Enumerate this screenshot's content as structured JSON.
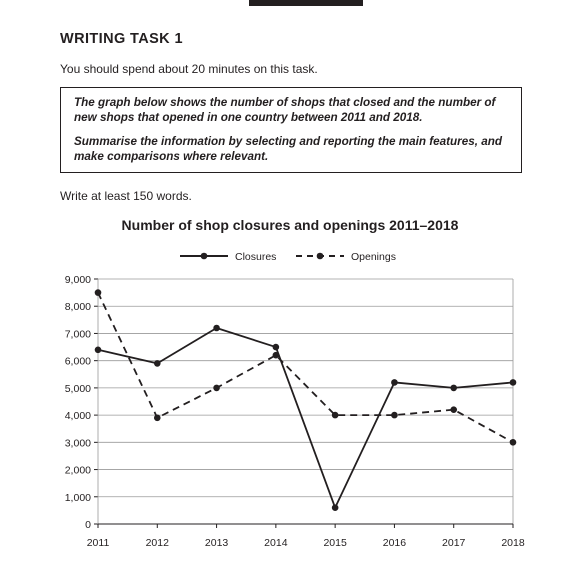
{
  "page": {
    "heading": "WRITING TASK 1",
    "instruction": "You should spend about 20 minutes on this task.",
    "task_paragraph_1": "The graph below shows the number of shops that closed and the number of new shops that opened in one country between 2011 and 2018.",
    "task_paragraph_2": "Summarise the information by selecting and reporting the main features, and make comparisons where relevant.",
    "word_count": "Write at least 150 words."
  },
  "chart_data": {
    "type": "line",
    "title": "Number of shop closures and openings 2011–2018",
    "x": [
      "2011",
      "2012",
      "2013",
      "2014",
      "2015",
      "2016",
      "2017",
      "2018"
    ],
    "ylim": [
      0,
      9000
    ],
    "yticks": [
      "0",
      "1,000",
      "2,000",
      "3,000",
      "4,000",
      "5,000",
      "6,000",
      "7,000",
      "8,000",
      "9,000"
    ],
    "grid": true,
    "legend_position": "top",
    "series": [
      {
        "name": "Closures",
        "style": "solid",
        "values": [
          6400,
          5900,
          7200,
          6500,
          600,
          5200,
          5000,
          5200
        ]
      },
      {
        "name": "Openings",
        "style": "dashed",
        "values": [
          8500,
          3900,
          5000,
          6200,
          4000,
          4000,
          4200,
          3000
        ]
      }
    ],
    "colors": {
      "line": "#231f20",
      "grid": "#9a9a9a"
    }
  }
}
